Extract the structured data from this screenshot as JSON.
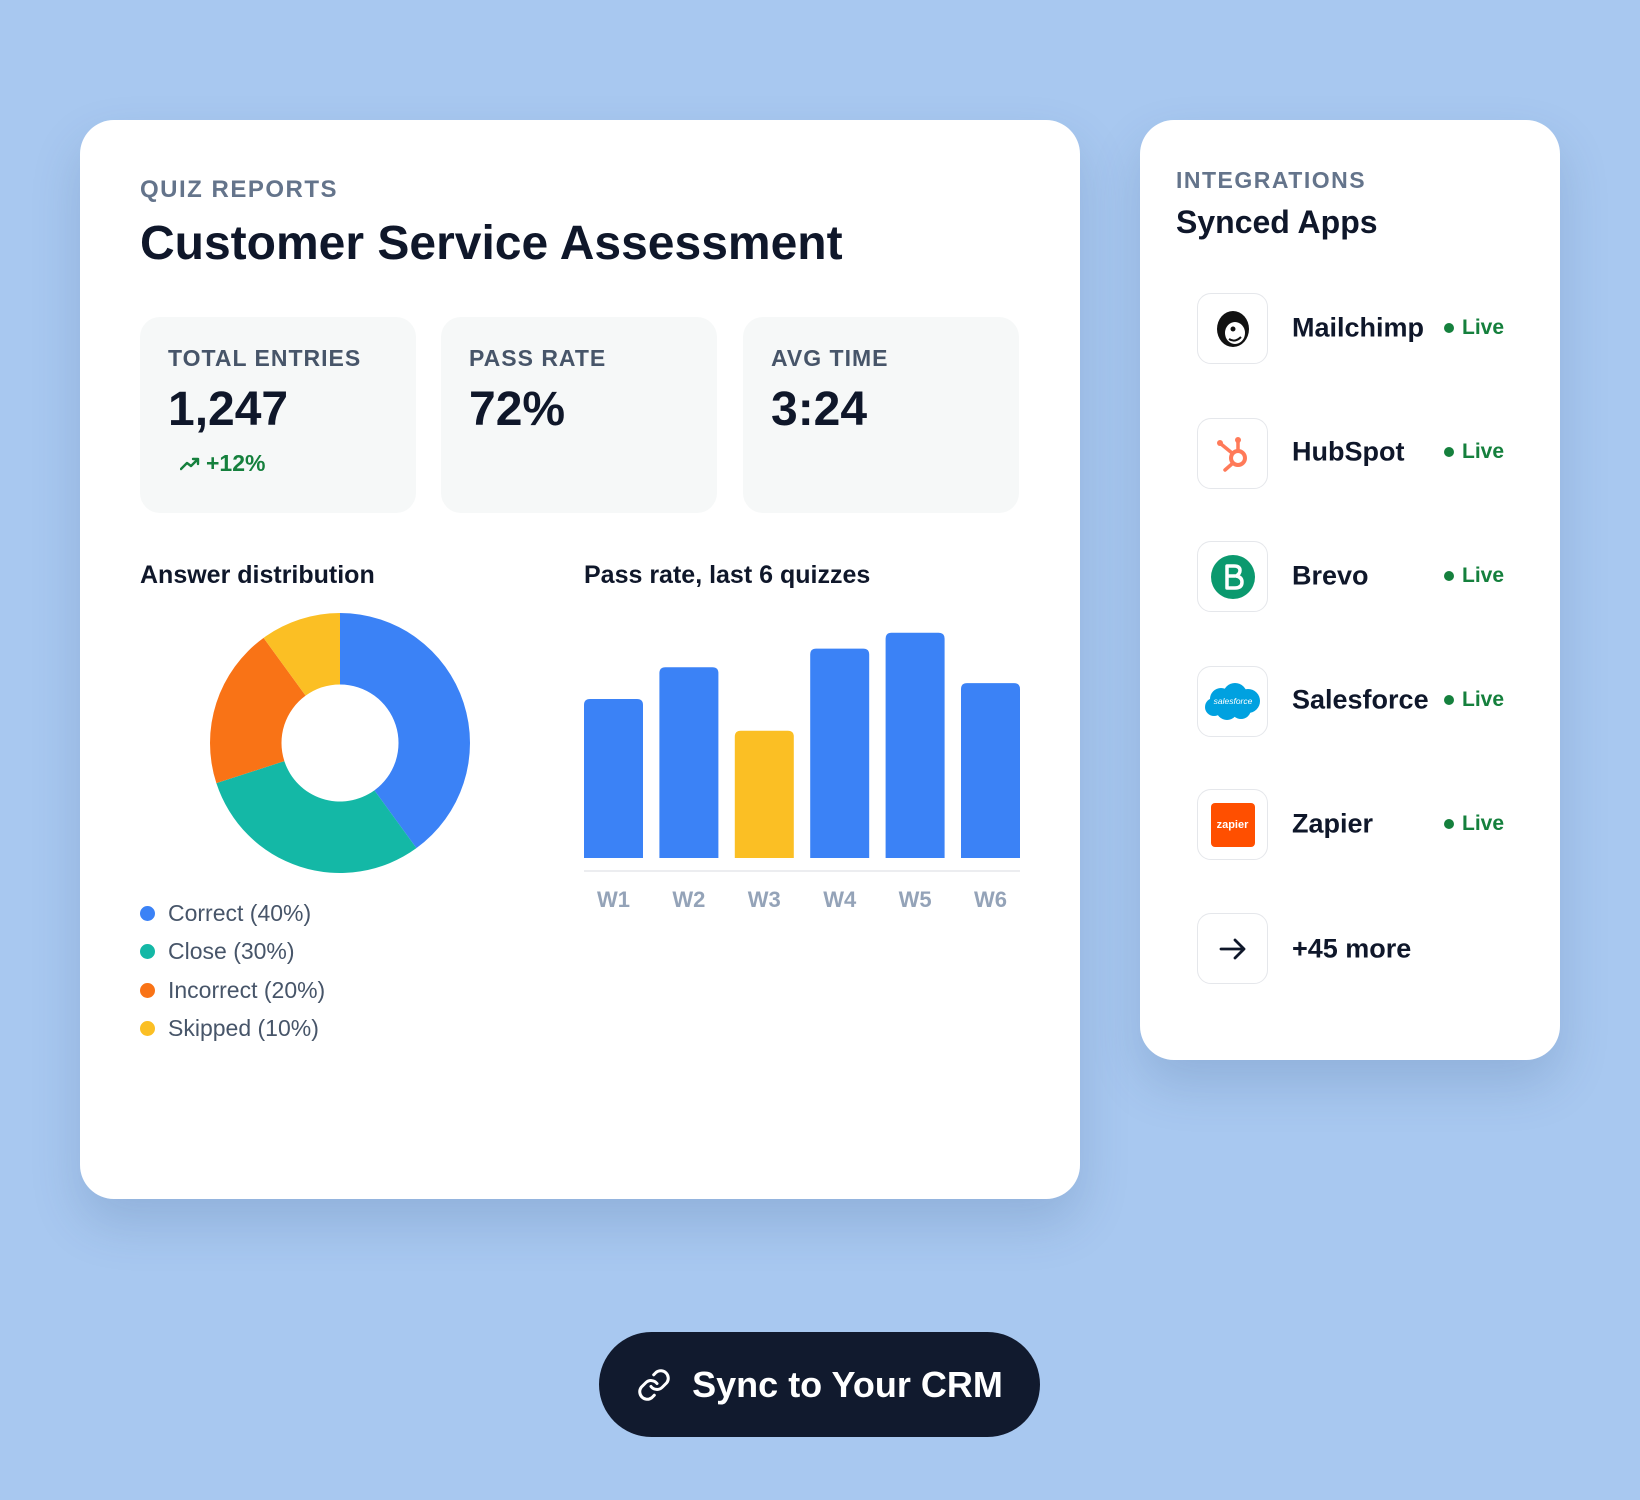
{
  "report": {
    "eyebrow": "QUIZ REPORTS",
    "title": "Customer Service Assessment",
    "stats": [
      {
        "label": "TOTAL ENTRIES",
        "value": "1,247",
        "change": "+12%"
      },
      {
        "label": "PASS RATE",
        "value": "72%"
      },
      {
        "label": "AVG TIME",
        "value": "3:24"
      }
    ],
    "charts": [
      {
        "type": "pie",
        "title": "Answer distribution",
        "labels": [
          "Correct (40%)",
          "Close (30%)",
          "Incorrect (20%)",
          "Skipped (10%)"
        ],
        "values": [
          40,
          30,
          20,
          10
        ],
        "colors": [
          "#3b82f6",
          "#14b8a6",
          "#f97316",
          "#fbbf24"
        ],
        "hole": 0.45
      },
      {
        "type": "bar",
        "title": "Pass rate, last 6 quizzes",
        "categories": [
          "W1",
          "W2",
          "W3",
          "W4",
          "W5",
          "W6"
        ],
        "values": [
          60,
          72,
          48,
          79,
          85,
          66
        ],
        "colors": [
          "#3b82f6",
          "#3b82f6",
          "#fbbf24",
          "#3b82f6",
          "#3b82f6",
          "#3b82f6"
        ],
        "ylim": [
          0,
          100
        ]
      }
    ]
  },
  "integrations": {
    "eyebrow": "INTEGRATIONS",
    "title": "Synced Apps",
    "apps": [
      {
        "name": "Mailchimp",
        "status": "Live"
      },
      {
        "name": "HubSpot",
        "status": "Live"
      },
      {
        "name": "Brevo",
        "status": "Live"
      },
      {
        "name": "Salesforce",
        "status": "Live",
        "logo_text": "salesforce"
      },
      {
        "name": "Zapier",
        "status": "Live",
        "logo_text": "zapier"
      }
    ],
    "more": "+45 more"
  },
  "button": {
    "label": "Sync to Your CRM"
  }
}
